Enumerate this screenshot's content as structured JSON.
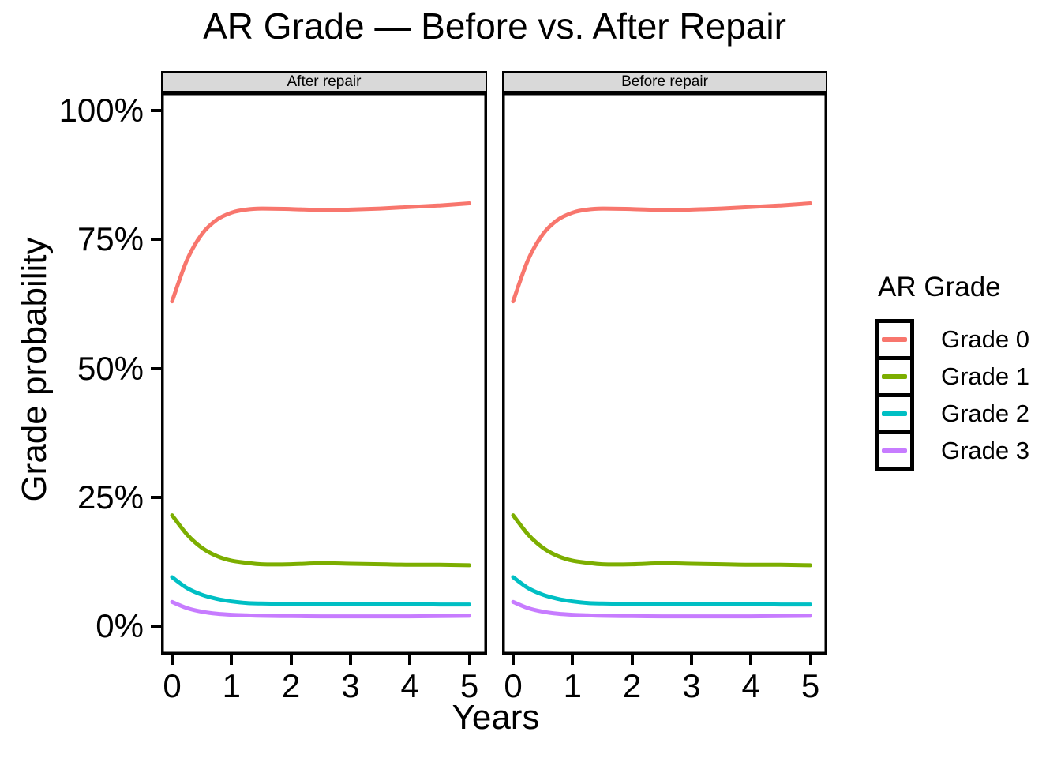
{
  "chart_data": {
    "type": "line",
    "title": "AR Grade — Before vs. After Repair",
    "xlabel": "Years",
    "ylabel": "Grade probability",
    "xlim": [
      0,
      5
    ],
    "ylim": [
      0,
      100
    ],
    "grid": false,
    "legend": {
      "title": "AR Grade",
      "position": "right"
    },
    "x_ticks": {
      "values": [
        0,
        1,
        2,
        3,
        4,
        5
      ],
      "labels": [
        "0",
        "1",
        "2",
        "3",
        "4",
        "5"
      ]
    },
    "y_ticks": {
      "values": [
        0,
        25,
        50,
        75,
        100
      ],
      "labels": [
        "0%",
        "25%",
        "50%",
        "75%",
        "100%"
      ]
    },
    "x": [
      0,
      0.25,
      0.5,
      0.75,
      1,
      1.25,
      1.5,
      2,
      2.5,
      3,
      3.5,
      4,
      4.5,
      5
    ],
    "facets": [
      {
        "label": "After repair",
        "series": [
          {
            "name": "Grade 0",
            "color": "#F8766D",
            "values": [
              63,
              71,
              76,
              78.8,
              80.2,
              80.8,
              81,
              80.9,
              80.7,
              80.8,
              81,
              81.3,
              81.6,
              82
            ]
          },
          {
            "name": "Grade 1",
            "color": "#7CAE00",
            "values": [
              21.5,
              17.8,
              15.2,
              13.6,
              12.7,
              12.3,
              12,
              12,
              12.2,
              12.1,
              12,
              11.9,
              11.9,
              11.8
            ]
          },
          {
            "name": "Grade 2",
            "color": "#00BFC4",
            "values": [
              9.5,
              7.4,
              6.1,
              5.3,
              4.8,
              4.5,
              4.4,
              4.3,
              4.3,
              4.3,
              4.3,
              4.3,
              4.2,
              4.2
            ]
          },
          {
            "name": "Grade 3",
            "color": "#C77CFF",
            "values": [
              4.7,
              3.5,
              2.8,
              2.4,
              2.2,
              2.1,
              2,
              1.95,
              1.9,
              1.9,
              1.9,
              1.9,
              1.95,
              2
            ]
          }
        ]
      },
      {
        "label": "Before repair",
        "series": [
          {
            "name": "Grade 0",
            "color": "#F8766D",
            "values": [
              63,
              71,
              76,
              78.8,
              80.2,
              80.8,
              81,
              80.9,
              80.7,
              80.8,
              81,
              81.3,
              81.6,
              82
            ]
          },
          {
            "name": "Grade 1",
            "color": "#7CAE00",
            "values": [
              21.5,
              17.8,
              15.2,
              13.6,
              12.7,
              12.3,
              12,
              12,
              12.2,
              12.1,
              12,
              11.9,
              11.9,
              11.8
            ]
          },
          {
            "name": "Grade 2",
            "color": "#00BFC4",
            "values": [
              9.5,
              7.4,
              6.1,
              5.3,
              4.8,
              4.5,
              4.4,
              4.3,
              4.3,
              4.3,
              4.3,
              4.3,
              4.2,
              4.2
            ]
          },
          {
            "name": "Grade 3",
            "color": "#C77CFF",
            "values": [
              4.7,
              3.5,
              2.8,
              2.4,
              2.2,
              2.1,
              2,
              1.95,
              1.9,
              1.9,
              1.9,
              1.9,
              1.95,
              2
            ]
          }
        ]
      }
    ]
  }
}
